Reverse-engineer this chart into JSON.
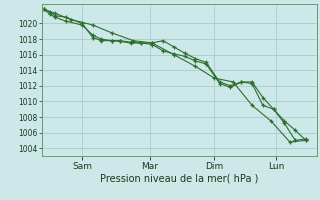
{
  "title": "Pression niveau de la mer( hPa )",
  "bg_color": "#cce8e8",
  "grid_color": "#aacccc",
  "line_color": "#2d6e2d",
  "marker_color": "#2d6e2d",
  "ylim": [
    1003,
    1022.5
  ],
  "yticks": [
    1004,
    1006,
    1008,
    1010,
    1012,
    1014,
    1016,
    1018,
    1020
  ],
  "day_labels": [
    "Sam",
    "Mar",
    "Dim",
    "Lun"
  ],
  "day_positions": [
    0.14,
    0.39,
    0.63,
    0.86
  ],
  "series1_x": [
    0.0,
    0.02,
    0.04,
    0.08,
    0.14,
    0.18,
    0.21,
    0.25,
    0.28,
    0.32,
    0.36,
    0.4,
    0.44,
    0.48,
    0.52,
    0.56,
    0.6,
    0.65,
    0.69,
    0.73,
    0.77,
    0.81,
    0.85,
    0.89,
    0.93,
    0.97
  ],
  "series1_y": [
    1021.8,
    1021.5,
    1021.0,
    1020.8,
    1020.0,
    1018.2,
    1017.8,
    1017.8,
    1017.7,
    1017.5,
    1017.5,
    1017.3,
    1016.5,
    1016.1,
    1015.8,
    1015.2,
    1014.8,
    1012.3,
    1011.8,
    1012.5,
    1012.5,
    1010.5,
    1009.0,
    1007.5,
    1006.3,
    1005.0
  ],
  "series2_x": [
    0.0,
    0.02,
    0.04,
    0.08,
    0.14,
    0.18,
    0.21,
    0.25,
    0.28,
    0.32,
    0.36,
    0.4,
    0.44,
    0.48,
    0.52,
    0.56,
    0.6,
    0.65,
    0.69,
    0.73,
    0.77,
    0.81,
    0.85,
    0.89,
    0.93,
    0.97
  ],
  "series2_y": [
    1021.8,
    1021.2,
    1020.8,
    1020.3,
    1019.8,
    1018.5,
    1018.0,
    1017.8,
    1017.8,
    1017.6,
    1017.5,
    1017.5,
    1017.8,
    1017.0,
    1016.2,
    1015.5,
    1015.0,
    1012.5,
    1012.0,
    1012.5,
    1012.3,
    1009.5,
    1009.0,
    1007.2,
    1005.0,
    1005.2
  ],
  "series3_x": [
    0.0,
    0.04,
    0.1,
    0.18,
    0.25,
    0.33,
    0.4,
    0.48,
    0.56,
    0.63,
    0.7,
    0.77,
    0.84,
    0.91,
    0.97
  ],
  "series3_y": [
    1021.8,
    1021.3,
    1020.5,
    1019.8,
    1018.8,
    1017.8,
    1017.5,
    1016.0,
    1014.5,
    1013.0,
    1012.5,
    1009.5,
    1007.5,
    1004.8,
    1005.0
  ]
}
